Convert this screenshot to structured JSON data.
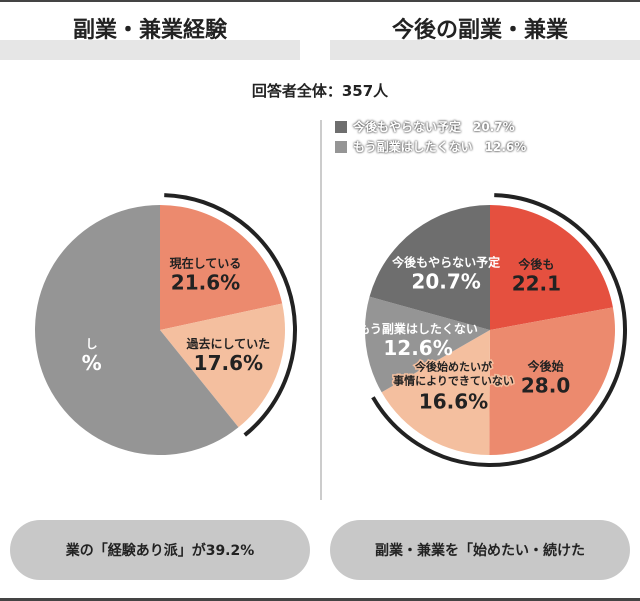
{
  "respondents": "回答者全体：357人",
  "colors": {
    "red": "#e5503f",
    "salmon": "#ec8a6e",
    "peach": "#f4bf9f",
    "gray": "#959595",
    "darkgray": "#6e6e6e"
  },
  "chart_data": [
    {
      "type": "pie",
      "title": "副業・兼業経験",
      "slices": [
        {
          "label": "現在している",
          "value": 21.6,
          "display": "21.6%",
          "color": "#ec8a6e"
        },
        {
          "label": "過去にしていた",
          "value": 17.6,
          "display": "17.6%",
          "color": "#f4bf9f"
        },
        {
          "label": "し",
          "value": 60.8,
          "display": "%",
          "color": "#959595"
        }
      ],
      "summary": "業の「経験あり派」が39.2%"
    },
    {
      "type": "pie",
      "title": "今後の副業・兼業",
      "slices": [
        {
          "label": "今後も",
          "value": 22.1,
          "display": "22.1",
          "color": "#e5503f"
        },
        {
          "label": "今後始",
          "value": 28.0,
          "display": "28.0",
          "color": "#ec8a6e"
        },
        {
          "label": "今後始めたいが事情によりできていない",
          "line1": "今後始めたいが",
          "line2": "事情によりできていない",
          "value": 16.6,
          "display": "16.6%",
          "color": "#f4bf9f"
        },
        {
          "label": "もう副業はしたくない",
          "value": 12.6,
          "display": "12.6%",
          "color": "#959595"
        },
        {
          "label": "今後もやらない予定",
          "value": 20.7,
          "display": "20.7%",
          "color": "#6e6e6e"
        }
      ],
      "legend": [
        {
          "label": "今後もやらない予定",
          "value": "20.7%",
          "color": "#6e6e6e"
        },
        {
          "label": "もう副業はしたくない",
          "value": "12.6%",
          "color": "#959595"
        }
      ],
      "summary": "副業・兼業を「始めたい・続けた"
    }
  ]
}
